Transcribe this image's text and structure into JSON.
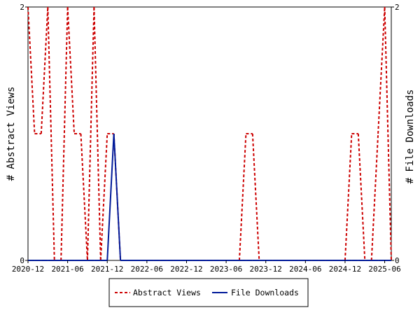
{
  "chart_data": {
    "type": "line",
    "x_tick_labels": [
      "2020-12",
      "2021-06",
      "2021-12",
      "2022-06",
      "2022-12",
      "2023-06",
      "2023-12",
      "2024-06",
      "2024-12",
      "2025-06"
    ],
    "ylabel_left": "# Abstract Views",
    "ylabel_right": "# File Downloads",
    "ylim_left": [
      0,
      2
    ],
    "ylim_right": [
      0,
      2
    ],
    "y_tick_labels_left": [
      "0",
      "2"
    ],
    "y_tick_labels_right": [
      "0",
      "2"
    ],
    "grid": false,
    "legend_position": "bottom-center",
    "x": [
      "2020-12",
      "2021-01",
      "2021-02",
      "2021-03",
      "2021-04",
      "2021-05",
      "2021-06",
      "2021-07",
      "2021-08",
      "2021-09",
      "2021-10",
      "2021-11",
      "2021-12",
      "2022-01",
      "2022-02",
      "2022-03",
      "2022-04",
      "2022-05",
      "2022-06",
      "2022-07",
      "2022-08",
      "2022-09",
      "2022-10",
      "2022-11",
      "2022-12",
      "2023-01",
      "2023-02",
      "2023-03",
      "2023-04",
      "2023-05",
      "2023-06",
      "2023-07",
      "2023-08",
      "2023-09",
      "2023-10",
      "2023-11",
      "2023-12",
      "2024-01",
      "2024-02",
      "2024-03",
      "2024-04",
      "2024-05",
      "2024-06",
      "2024-07",
      "2024-08",
      "2024-09",
      "2024-10",
      "2024-11",
      "2024-12",
      "2025-01",
      "2025-02",
      "2025-03",
      "2025-04",
      "2025-05",
      "2025-06",
      "2025-07"
    ],
    "series": [
      {
        "name": "Abstract Views",
        "color": "#cc0000",
        "dash": true,
        "axis": "left",
        "values": [
          2,
          1,
          1,
          2,
          0,
          0,
          2,
          1,
          1,
          0,
          2,
          0,
          1,
          1,
          0,
          0,
          0,
          0,
          0,
          0,
          0,
          0,
          0,
          0,
          0,
          0,
          0,
          0,
          0,
          0,
          0,
          0,
          0,
          1,
          1,
          0,
          0,
          0,
          0,
          0,
          0,
          0,
          0,
          0,
          0,
          0,
          0,
          0,
          0,
          1,
          1,
          0,
          0,
          1,
          2,
          0
        ]
      },
      {
        "name": "File Downloads",
        "color": "#001a99",
        "dash": false,
        "axis": "right",
        "values": [
          0,
          0,
          0,
          0,
          0,
          0,
          0,
          0,
          0,
          0,
          0,
          0,
          0,
          1,
          0,
          0,
          0,
          0,
          0,
          0,
          0,
          0,
          0,
          0,
          0,
          0,
          0,
          0,
          0,
          0,
          0,
          0,
          0,
          0,
          0,
          0,
          0,
          0,
          0,
          0,
          0,
          0,
          0,
          0,
          0,
          0,
          0,
          0,
          0,
          0,
          0,
          0,
          0,
          0,
          0,
          0
        ]
      }
    ]
  }
}
